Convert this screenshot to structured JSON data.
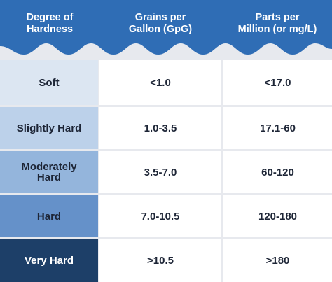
{
  "headers": {
    "degree": "Degree of\nHardness",
    "gpg": "Grains per\nGallon (GpG)",
    "ppm": "Parts per\nMillion (or mg/L)"
  },
  "rows": [
    {
      "label": "Soft",
      "gpg": "<1.0",
      "ppm": "<17.0",
      "color": "#dce6f2",
      "text_color": "#1d2536"
    },
    {
      "label": "Slightly Hard",
      "gpg": "1.0-3.5",
      "ppm": "17.1-60",
      "color": "#bcd1ea",
      "text_color": "#1d2536"
    },
    {
      "label": "Moderately\nHard",
      "gpg": "3.5-7.0",
      "ppm": "60-120",
      "color": "#94b5dc",
      "text_color": "#1d2536"
    },
    {
      "label": "Hard",
      "gpg": "7.0-10.5",
      "ppm": "120-180",
      "color": "#6591c9",
      "text_color": "#1d2536"
    },
    {
      "label": "Very Hard",
      "gpg": ">10.5",
      "ppm": ">180",
      "color": "#1d3f68",
      "text_color": "#ffffff"
    }
  ],
  "colors": {
    "header_blue": "#2f6db5",
    "divider": "#e7e9ee"
  }
}
